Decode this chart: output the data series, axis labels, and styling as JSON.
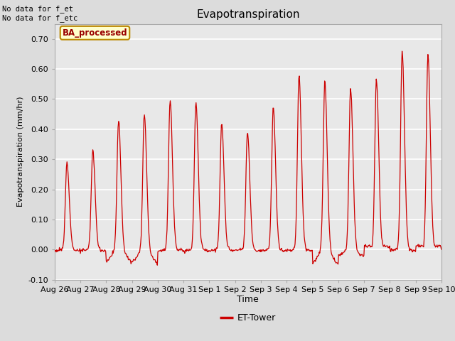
{
  "title": "Evapotranspiration",
  "ylabel": "Evapotranspiration (mm/hr)",
  "xlabel": "Time",
  "ylim": [
    -0.1,
    0.75
  ],
  "yticks": [
    -0.1,
    0.0,
    0.1,
    0.2,
    0.3,
    0.4,
    0.5,
    0.6,
    0.7
  ],
  "xtick_labels": [
    "Aug 26",
    "Aug 27",
    "Aug 28",
    "Aug 29",
    "Aug 30",
    "Aug 31",
    "Sep 1",
    "Sep 2",
    "Sep 3",
    "Sep 4",
    "Sep 5",
    "Sep 6",
    "Sep 7",
    "Sep 8",
    "Sep 9",
    "Sep 10"
  ],
  "annotation_top_left": "No data for f_et\nNo data for f_etc",
  "legend_box_label": "BA_processed",
  "legend_line_label": "ET-Tower",
  "line_color": "#cc0000",
  "legend_box_facecolor": "#ffffcc",
  "legend_box_edgecolor": "#bb8800",
  "legend_box_textcolor": "#990000",
  "bg_color": "#dcdcdc",
  "plot_bg_color": "#e8e8e8",
  "grid_color": "#ffffff",
  "num_days": 15,
  "day_peaks": [
    0.29,
    0.33,
    0.43,
    0.45,
    0.5,
    0.49,
    0.42,
    0.39,
    0.47,
    0.58,
    0.56,
    0.54,
    0.57,
    0.66,
    0.65
  ],
  "day_minima": [
    -0.005,
    -0.005,
    -0.055,
    -0.06,
    -0.005,
    -0.005,
    -0.005,
    -0.005,
    -0.005,
    -0.005,
    -0.065,
    -0.03,
    0.01,
    -0.005,
    0.01
  ]
}
